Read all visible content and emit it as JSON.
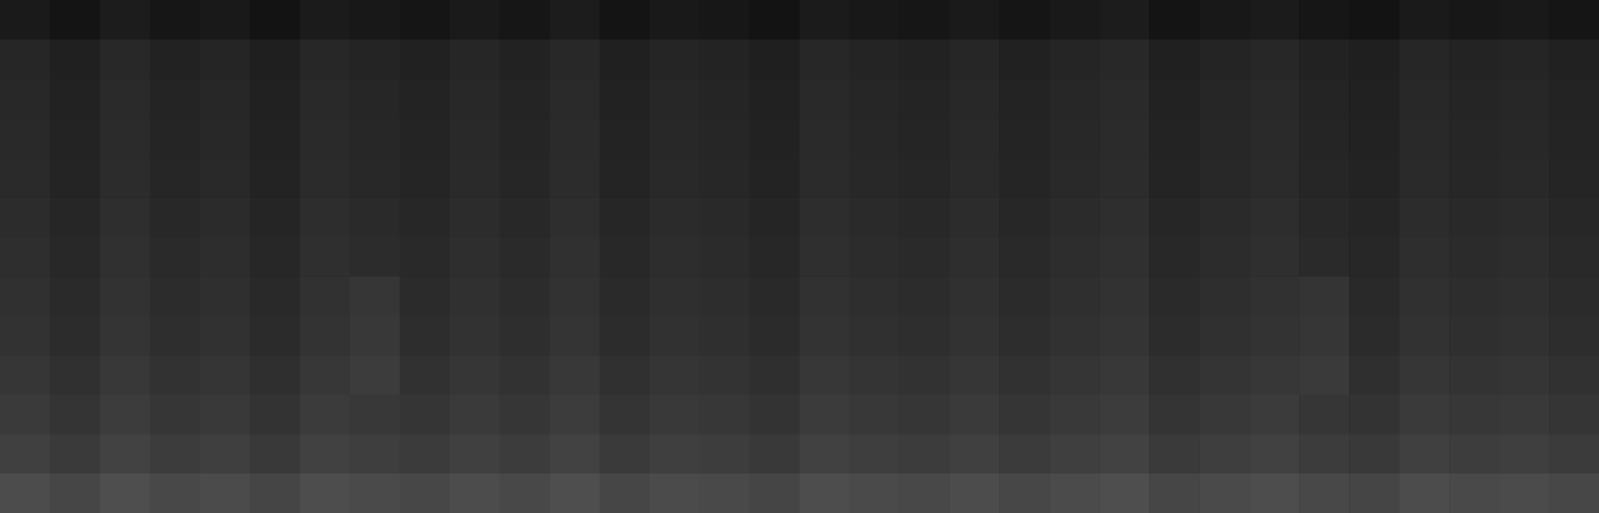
{
  "chart_data": {
    "type": "heatmap",
    "tick_labels": false,
    "cells": [
      [
        26,
        20,
        28,
        22,
        25,
        19,
        27,
        24,
        21,
        26,
        22,
        28,
        20,
        25,
        23,
        19,
        27,
        24,
        22,
        26,
        21,
        25,
        28,
        20,
        24,
        27,
        22,
        19,
        26,
        23,
        25,
        21
      ],
      [
        38,
        32,
        40,
        34,
        37,
        31,
        39,
        36,
        33,
        38,
        34,
        40,
        32,
        37,
        35,
        31,
        39,
        36,
        34,
        38,
        33,
        37,
        40,
        32,
        36,
        39,
        34,
        31,
        38,
        35,
        37,
        33
      ],
      [
        40,
        34,
        42,
        36,
        39,
        33,
        41,
        38,
        35,
        40,
        36,
        42,
        34,
        39,
        37,
        33,
        41,
        38,
        36,
        40,
        35,
        39,
        42,
        34,
        38,
        41,
        36,
        33,
        40,
        37,
        39,
        35
      ],
      [
        41,
        35,
        43,
        37,
        40,
        34,
        42,
        39,
        36,
        41,
        37,
        43,
        35,
        40,
        38,
        34,
        42,
        39,
        37,
        41,
        36,
        40,
        43,
        35,
        39,
        42,
        37,
        34,
        41,
        38,
        40,
        36
      ],
      [
        42,
        36,
        44,
        38,
        41,
        35,
        43,
        40,
        37,
        42,
        38,
        44,
        36,
        41,
        39,
        35,
        43,
        40,
        38,
        42,
        37,
        41,
        44,
        36,
        40,
        43,
        38,
        35,
        42,
        39,
        41,
        37
      ],
      [
        44,
        38,
        46,
        40,
        43,
        37,
        45,
        42,
        39,
        44,
        40,
        46,
        38,
        43,
        41,
        37,
        45,
        42,
        40,
        44,
        39,
        43,
        46,
        38,
        42,
        45,
        40,
        37,
        44,
        41,
        43,
        39
      ],
      [
        46,
        40,
        48,
        42,
        45,
        39,
        47,
        44,
        41,
        46,
        42,
        48,
        40,
        45,
        43,
        39,
        47,
        44,
        42,
        46,
        41,
        45,
        48,
        40,
        44,
        47,
        42,
        39,
        46,
        43,
        45,
        41
      ],
      [
        48,
        42,
        50,
        44,
        47,
        41,
        49,
        54,
        43,
        48,
        44,
        50,
        42,
        47,
        45,
        41,
        49,
        46,
        44,
        48,
        43,
        47,
        50,
        42,
        46,
        49,
        52,
        41,
        48,
        45,
        47,
        43
      ],
      [
        50,
        44,
        52,
        46,
        49,
        43,
        51,
        56,
        45,
        50,
        46,
        52,
        44,
        49,
        47,
        43,
        51,
        48,
        46,
        50,
        45,
        49,
        52,
        44,
        48,
        51,
        54,
        43,
        50,
        47,
        49,
        45
      ],
      [
        54,
        48,
        56,
        50,
        53,
        47,
        55,
        60,
        49,
        54,
        50,
        56,
        48,
        53,
        51,
        47,
        55,
        52,
        50,
        54,
        49,
        53,
        56,
        48,
        52,
        55,
        58,
        47,
        54,
        51,
        53,
        49
      ],
      [
        58,
        52,
        60,
        54,
        57,
        51,
        59,
        56,
        53,
        58,
        54,
        60,
        52,
        57,
        55,
        51,
        59,
        56,
        54,
        58,
        53,
        57,
        60,
        52,
        56,
        59,
        54,
        51,
        58,
        55,
        57,
        53
      ],
      [
        64,
        58,
        66,
        60,
        63,
        57,
        65,
        62,
        59,
        64,
        60,
        66,
        58,
        63,
        61,
        57,
        65,
        62,
        60,
        64,
        59,
        63,
        66,
        58,
        62,
        65,
        60,
        57,
        64,
        61,
        63,
        59
      ],
      [
        76,
        70,
        78,
        72,
        75,
        69,
        77,
        74,
        71,
        76,
        72,
        78,
        70,
        75,
        73,
        69,
        77,
        74,
        72,
        76,
        71,
        75,
        78,
        70,
        74,
        77,
        72,
        69,
        76,
        73,
        75,
        71
      ]
    ]
  }
}
